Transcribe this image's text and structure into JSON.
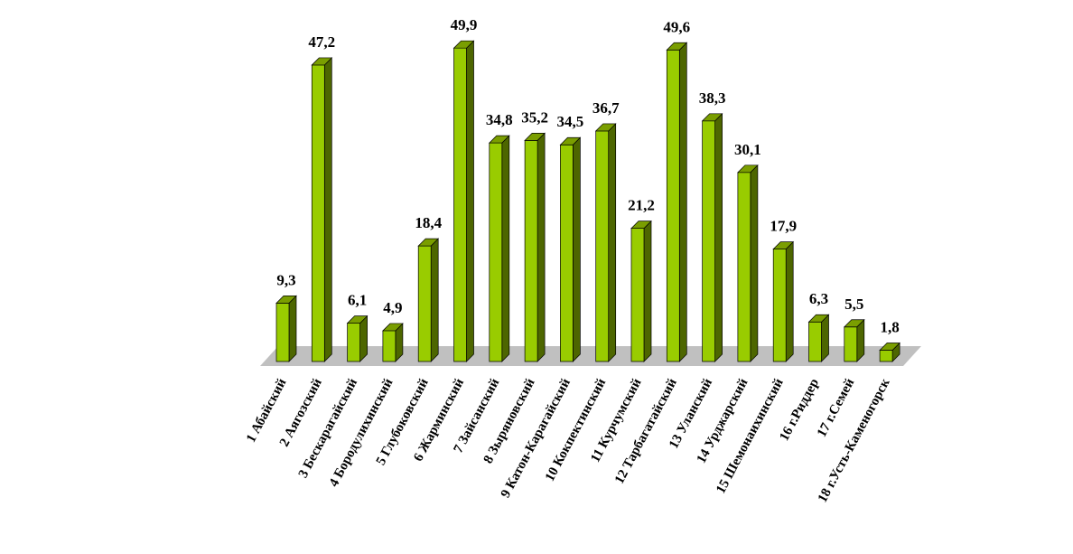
{
  "chart_data": {
    "type": "bar",
    "style": "3d-column",
    "categories": [
      "1 Абайский",
      "2 Аягозский",
      "3 Бескарагайский",
      "4 Бородулихинский",
      "5 Глубоковский",
      "6 Жарминский",
      "7 Зайсанский",
      "8 Зыряновский",
      "9 Катон-Карагайский",
      "10 Кокпектинский",
      "11 Курчумский",
      "12 Тарбагатайский",
      "13 Уланский",
      "14 Урджарский",
      "15 Шемонаихинский",
      "16 г.Риддер",
      "17 г.Семей",
      "18 г.Усть-Каменогорск"
    ],
    "values": [
      9.3,
      47.2,
      6.1,
      4.9,
      18.4,
      49.9,
      34.8,
      35.2,
      34.5,
      36.7,
      21.2,
      49.6,
      38.3,
      30.1,
      17.9,
      6.3,
      5.5,
      1.8
    ],
    "value_labels": [
      "9,3",
      "47,2",
      "6,1",
      "4,9",
      "18,4",
      "49,9",
      "34,8",
      "35,2",
      "34,5",
      "36,7",
      "21,2",
      "49,6",
      "38,3",
      "30,1",
      "17,9",
      "6,3",
      "5,5",
      "1,8"
    ],
    "title": "",
    "xlabel": "",
    "ylabel": "",
    "ylim": [
      0,
      50
    ],
    "grid": false,
    "legend": "none",
    "bar_color": "#99cc00",
    "bar_side_color": "#4d6600",
    "bar_top_color": "#7a9e00",
    "floor_color": "#c0c0c0"
  }
}
